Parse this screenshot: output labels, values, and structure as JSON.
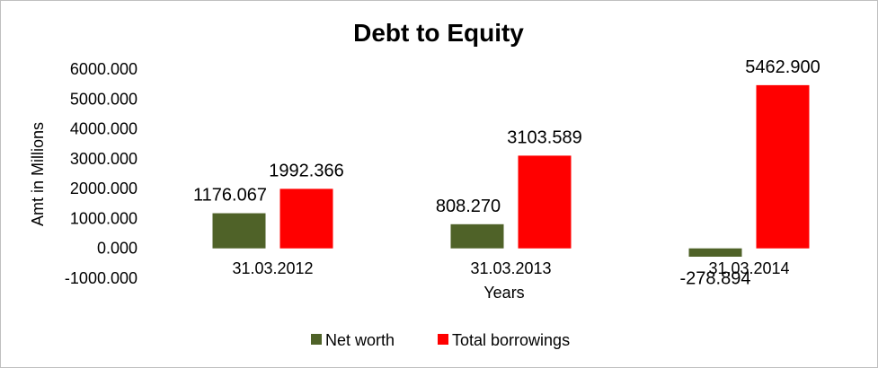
{
  "chart_data": {
    "type": "bar",
    "title": "Debt to Equity",
    "xlabel": "Years",
    "ylabel": "Amt in Millions",
    "categories": [
      "31.03.2012",
      "31.03.2013",
      "31.03.2014"
    ],
    "series": [
      {
        "name": "Net worth",
        "color": "#4f6228",
        "values": [
          1176.067,
          808.27,
          -278.894
        ],
        "labels": [
          "1176.067",
          "808.270",
          "-278.894"
        ]
      },
      {
        "name": "Total borrowings",
        "color": "#ff0000",
        "values": [
          1992.366,
          3103.589,
          5462.9
        ],
        "labels": [
          "1992.366",
          "3103.589",
          "5462.900"
        ]
      }
    ],
    "ylim": [
      -1000,
      6000
    ],
    "yticks": [
      "-1000.000",
      "0.000",
      "1000.000",
      "2000.000",
      "3000.000",
      "4000.000",
      "5000.000",
      "6000.000"
    ],
    "ytick_values": [
      -1000,
      0,
      1000,
      2000,
      3000,
      4000,
      5000,
      6000
    ],
    "grid": false,
    "legend_position": "bottom"
  }
}
